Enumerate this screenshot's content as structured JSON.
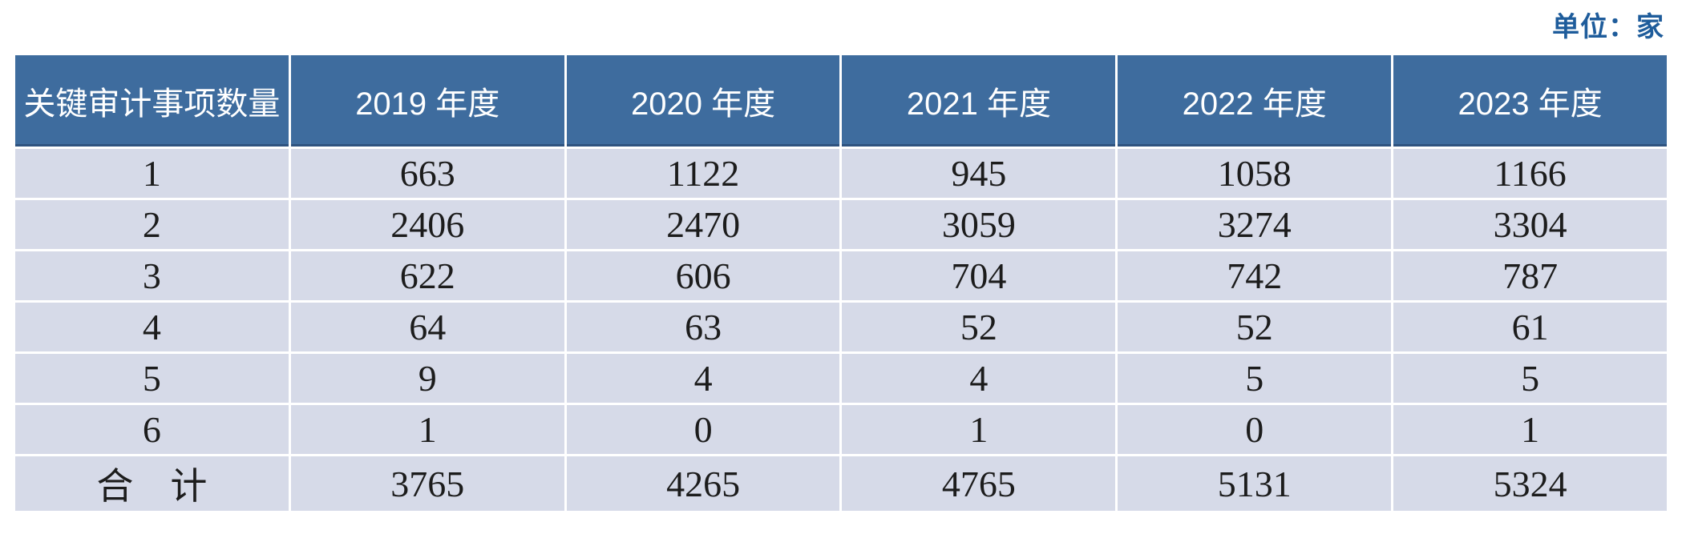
{
  "page": {
    "unit_label": "单位：家"
  },
  "colors": {
    "unit_text": "#1e5c9b",
    "header_bg": "#3e6c9e",
    "header_text": "#ffffff",
    "header_underline": "#2f5380",
    "row_bg": "#d6dae8",
    "grid": "#ffffff",
    "body_text": "#1c1c1c"
  },
  "table": {
    "header": [
      "关键审计事项数量",
      "2019 年度",
      "2020 年度",
      "2021 年度",
      "2022 年度",
      "2023 年度"
    ],
    "rows": [
      [
        "1",
        "663",
        "1122",
        "945",
        "1058",
        "1166"
      ],
      [
        "2",
        "2406",
        "2470",
        "3059",
        "3274",
        "3304"
      ],
      [
        "3",
        "622",
        "606",
        "704",
        "742",
        "787"
      ],
      [
        "4",
        "64",
        "63",
        "52",
        "52",
        "61"
      ],
      [
        "5",
        "9",
        "4",
        "4",
        "5",
        "5"
      ],
      [
        "6",
        "1",
        "0",
        "1",
        "0",
        "1"
      ],
      [
        "合　计",
        "3765",
        "4265",
        "4765",
        "5131",
        "5324"
      ]
    ]
  },
  "chart_data": {
    "type": "table",
    "title": "关键审计事项数量",
    "unit": "家",
    "categories": [
      "2019 年度",
      "2020 年度",
      "2021 年度",
      "2022 年度",
      "2023 年度"
    ],
    "series": [
      {
        "name": "1",
        "values": [
          663,
          1122,
          945,
          1058,
          1166
        ]
      },
      {
        "name": "2",
        "values": [
          2406,
          2470,
          3059,
          3274,
          3304
        ]
      },
      {
        "name": "3",
        "values": [
          622,
          606,
          704,
          742,
          787
        ]
      },
      {
        "name": "4",
        "values": [
          64,
          63,
          52,
          52,
          61
        ]
      },
      {
        "name": "5",
        "values": [
          9,
          4,
          4,
          5,
          5
        ]
      },
      {
        "name": "6",
        "values": [
          1,
          0,
          1,
          0,
          1
        ]
      },
      {
        "name": "合计",
        "values": [
          3765,
          4265,
          4765,
          5131,
          5324
        ]
      }
    ]
  }
}
